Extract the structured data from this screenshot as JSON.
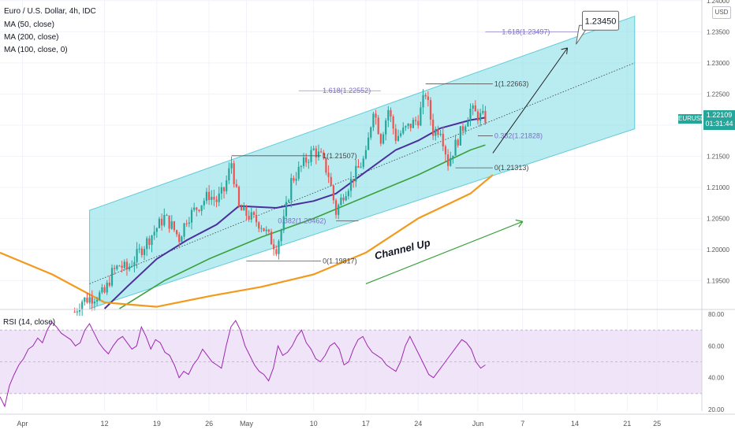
{
  "legend": {
    "title": "Euro / U.S. Dollar, 4h, IDC",
    "ma50": "MA (50, close)",
    "ma200": "MA (200, close)",
    "ma100": "MA (100, close, 0)",
    "rsi": "RSI (14, close)"
  },
  "currency": "USD",
  "symbol": "EURUSD",
  "last_price": "1.22109",
  "countdown": "01:31:44",
  "colors": {
    "channel": "#7fdde6",
    "ma50": "#4a2f9e",
    "ma200": "#f39a1c",
    "ma100": "#3aa03a",
    "rsi_line": "#9c27b0",
    "rsi_band": "#e9d9f5",
    "up_candle": "#26a69a",
    "down_candle": "#ef5350",
    "fib": "#7a6cc4",
    "projection_arrow": "#3aa03a"
  },
  "chart_data": [
    {
      "type": "candlestick",
      "title": "Euro / U.S. Dollar, 4h, IDC",
      "xlabel": "",
      "ylabel": "",
      "ylim": [
        1.1905,
        1.2401
      ],
      "y_ticks": [
        "1.24000",
        "1.23500",
        "1.23000",
        "1.22500",
        "1.22000",
        "1.21500",
        "1.21000",
        "1.20500",
        "1.20000",
        "1.19500"
      ],
      "x_ticks": [
        {
          "label": "Apr",
          "date": "2021-04-01"
        },
        {
          "label": "12",
          "date": "2021-04-12"
        },
        {
          "label": "19",
          "date": "2021-04-19"
        },
        {
          "label": "26",
          "date": "2021-04-26"
        },
        {
          "label": "May",
          "date": "2021-05-01"
        },
        {
          "label": "10",
          "date": "2021-05-10"
        },
        {
          "label": "17",
          "date": "2021-05-17"
        },
        {
          "label": "24",
          "date": "2021-05-24"
        },
        {
          "label": "Jun",
          "date": "2021-06-01"
        },
        {
          "label": "7",
          "date": "2021-06-07"
        },
        {
          "label": "14",
          "date": "2021-06-14"
        },
        {
          "label": "21",
          "date": "2021-06-21"
        },
        {
          "label": "25",
          "date": "2021-06-25"
        }
      ],
      "price_path": [
        [
          "2021-04-08",
          1.19
        ],
        [
          "2021-04-09",
          1.1918
        ],
        [
          "2021-04-12",
          1.193
        ],
        [
          "2021-04-13",
          1.1962
        ],
        [
          "2021-04-14",
          1.1975
        ],
        [
          "2021-04-15",
          1.1968
        ],
        [
          "2021-04-16",
          1.1985
        ],
        [
          "2021-04-19",
          1.2035
        ],
        [
          "2021-04-20",
          1.2052
        ],
        [
          "2021-04-21",
          1.2038
        ],
        [
          "2021-04-22",
          1.2018
        ],
        [
          "2021-04-23",
          1.205
        ],
        [
          "2021-04-26",
          1.2088
        ],
        [
          "2021-04-27",
          1.2078
        ],
        [
          "2021-04-28",
          1.2095
        ],
        [
          "2021-04-29",
          1.214
        ],
        [
          "2021-04-30",
          1.2065
        ],
        [
          "2021-05-03",
          1.204
        ],
        [
          "2021-05-04",
          1.202
        ],
        [
          "2021-05-05",
          1.2003
        ],
        [
          "2021-05-06",
          1.2045
        ],
        [
          "2021-05-07",
          1.211
        ],
        [
          "2021-05-10",
          1.216
        ],
        [
          "2021-05-11",
          1.2148
        ],
        [
          "2021-05-12",
          1.212
        ],
        [
          "2021-05-13",
          1.206
        ],
        [
          "2021-05-14",
          1.209
        ],
        [
          "2021-05-17",
          1.215
        ],
        [
          "2021-05-18",
          1.2228
        ],
        [
          "2021-05-19",
          1.2178
        ],
        [
          "2021-05-20",
          1.2225
        ],
        [
          "2021-05-21",
          1.218
        ],
        [
          "2021-05-24",
          1.221
        ],
        [
          "2021-05-25",
          1.2252
        ],
        [
          "2021-05-26",
          1.219
        ],
        [
          "2021-05-27",
          1.2195
        ],
        [
          "2021-05-28",
          1.214
        ],
        [
          "2021-05-31",
          1.2225
        ],
        [
          "2021-06-01",
          1.2215
        ],
        [
          "2021-06-02",
          1.2211
        ]
      ],
      "series": [
        {
          "name": "MA (50, close)",
          "values": [
            [
              "2021-04-12",
              1.1905
            ],
            [
              "2021-04-15",
              1.194
            ],
            [
              "2021-04-19",
              1.1985
            ],
            [
              "2021-04-23",
              1.2015
            ],
            [
              "2021-04-27",
              1.204
            ],
            [
              "2021-04-30",
              1.207
            ],
            [
              "2021-05-05",
              1.2067
            ],
            [
              "2021-05-10",
              1.2078
            ],
            [
              "2021-05-13",
              1.209
            ],
            [
              "2021-05-17",
              1.2125
            ],
            [
              "2021-05-21",
              1.216
            ],
            [
              "2021-05-24",
              1.2175
            ],
            [
              "2021-05-27",
              1.2195
            ],
            [
              "2021-05-31",
              1.2208
            ],
            [
              "2021-06-02",
              1.2212
            ]
          ]
        },
        {
          "name": "MA (100, close, 0)",
          "values": [
            [
              "2021-04-14",
              1.1905
            ],
            [
              "2021-04-20",
              1.195
            ],
            [
              "2021-04-26",
              1.1985
            ],
            [
              "2021-05-03",
              1.202
            ],
            [
              "2021-05-10",
              1.205
            ],
            [
              "2021-05-17",
              1.2085
            ],
            [
              "2021-05-24",
              1.212
            ],
            [
              "2021-05-31",
              1.216
            ],
            [
              "2021-06-02",
              1.2168
            ]
          ]
        },
        {
          "name": "MA (200, close)",
          "values": [
            [
              "2021-03-29",
              1.1995
            ],
            [
              "2021-04-05",
              1.196
            ],
            [
              "2021-04-12",
              1.1915
            ],
            [
              "2021-04-19",
              1.1908
            ],
            [
              "2021-04-26",
              1.1925
            ],
            [
              "2021-05-03",
              1.194
            ],
            [
              "2021-05-10",
              1.196
            ],
            [
              "2021-05-17",
              1.1995
            ],
            [
              "2021-05-24",
              1.205
            ],
            [
              "2021-05-31",
              1.209
            ],
            [
              "2021-06-03",
              1.212
            ]
          ]
        }
      ],
      "fibonacci_labels": [
        {
          "label": "1.618(1.23497)",
          "value": 1.23497
        },
        {
          "label": "1.618(1.22552)",
          "value": 1.22552
        },
        {
          "label": "1(1.22663)",
          "value": 1.22663
        },
        {
          "label": "0.382(1.21828)",
          "value": 1.21828
        },
        {
          "label": "0(1.21313)",
          "value": 1.21313
        },
        {
          "label": "1(1.21507)",
          "value": 1.21507
        },
        {
          "label": "0.382(1.20462)",
          "value": 1.20462
        },
        {
          "label": "0(1.19817)",
          "value": 1.19817
        }
      ],
      "annotations": [
        {
          "text": "1.23450",
          "value": 1.2345
        },
        {
          "text": "Channel Up"
        }
      ]
    },
    {
      "type": "line",
      "title": "RSI (14, close)",
      "ylim": [
        19,
        82
      ],
      "y_ticks": [
        "80.00",
        "60.00",
        "40.00",
        "20.00"
      ],
      "band": [
        30,
        70
      ],
      "values": [
        28,
        22,
        35,
        42,
        48,
        52,
        58,
        60,
        65,
        62,
        70,
        75,
        72,
        68,
        66,
        64,
        60,
        62,
        70,
        74,
        68,
        62,
        58,
        55,
        60,
        64,
        66,
        62,
        58,
        60,
        72,
        66,
        58,
        64,
        62,
        56,
        54,
        48,
        40,
        44,
        42,
        48,
        52,
        58,
        54,
        50,
        48,
        46,
        60,
        72,
        76,
        70,
        60,
        54,
        48,
        44,
        42,
        38,
        46,
        60,
        54,
        56,
        60,
        66,
        70,
        62,
        58,
        52,
        50,
        54,
        60,
        62,
        58,
        48,
        50,
        58,
        64,
        66,
        60,
        56,
        54,
        52,
        48,
        46,
        44,
        50,
        60,
        66,
        60,
        54,
        48,
        42,
        40,
        44,
        48,
        52,
        56,
        60,
        64,
        62,
        58,
        50,
        46,
        48
      ]
    }
  ]
}
